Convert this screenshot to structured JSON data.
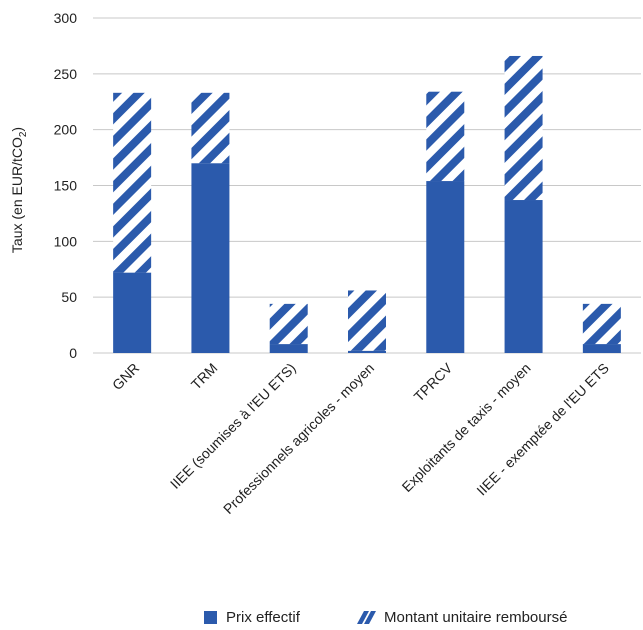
{
  "chart_data": {
    "type": "bar",
    "stacked": true,
    "ylabel": "Taux (en EUR/tCO",
    "ylabel_subscript": "2",
    "ylabel_suffix": ")",
    "ylim": [
      0,
      300
    ],
    "yticks": [
      0,
      50,
      100,
      150,
      200,
      250,
      300
    ],
    "grid": true,
    "legend_position": "bottom",
    "categories": [
      "GNR",
      "TRM",
      "IIEE (soumises à l'EU ETS)",
      "Professionnels agricoles - moyen",
      "TPRCV",
      "Exploitants de taxis - moyen",
      "IIEE - exemptée de l'EU ETS"
    ],
    "series": [
      {
        "name": "Prix effectif",
        "pattern": "solid",
        "color": "#2b5aac",
        "values": [
          72,
          170,
          8,
          2,
          154,
          137,
          8
        ]
      },
      {
        "name": "Montant unitaire remboursé",
        "pattern": "hatched",
        "color": "#2b5aac",
        "values": [
          161,
          63,
          36,
          54,
          80,
          129,
          36
        ]
      }
    ]
  }
}
